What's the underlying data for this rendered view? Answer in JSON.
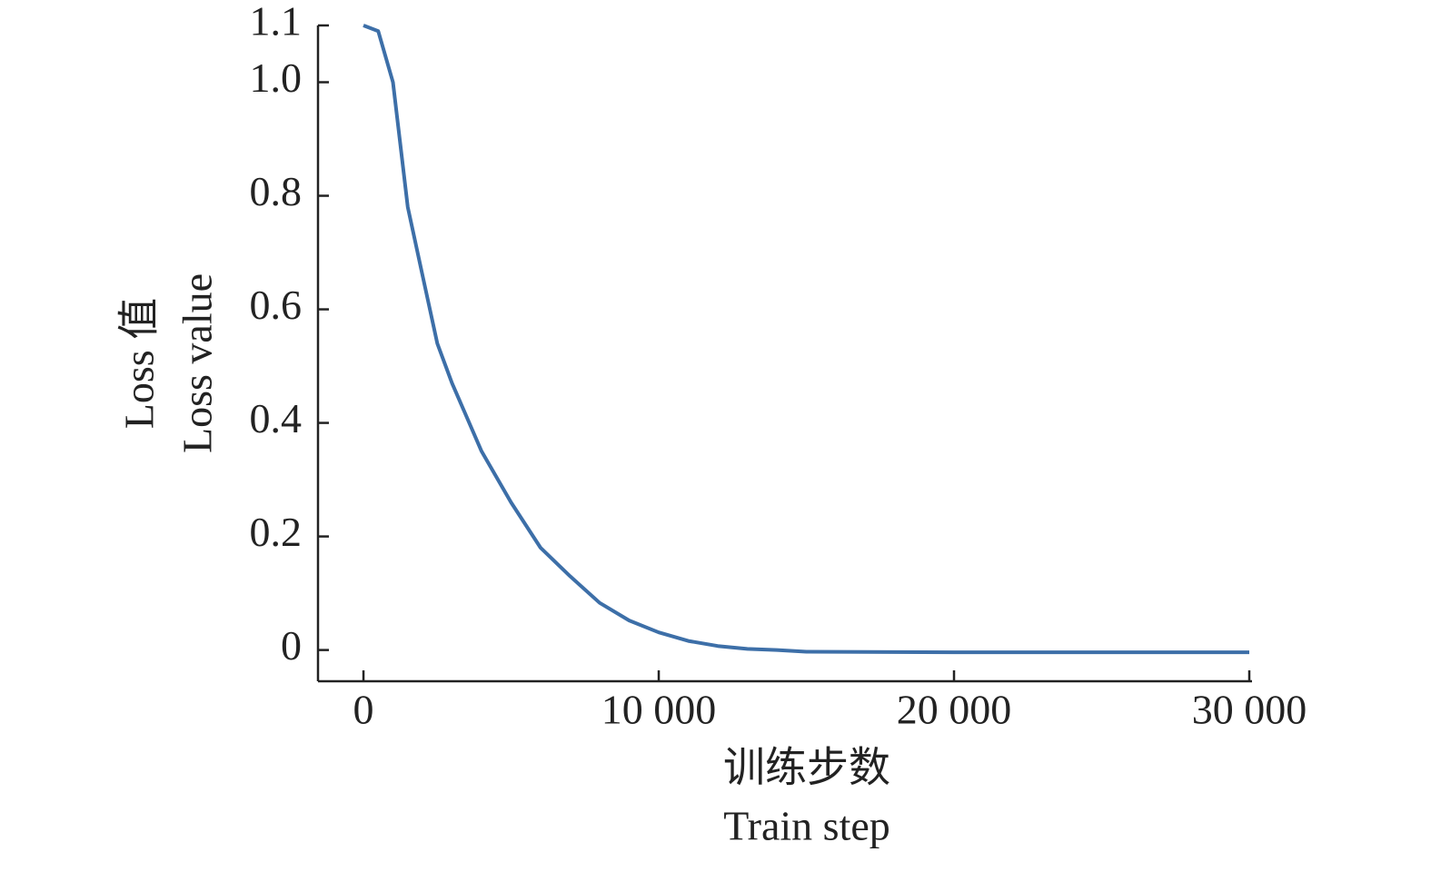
{
  "chart_data": {
    "type": "line",
    "x_label": [
      "训练步数",
      "Train step"
    ],
    "y_label": [
      "Loss 值",
      "Loss value"
    ],
    "series": [
      {
        "name": "Loss",
        "color": "#3d6fa8",
        "x": [
          0,
          500,
          1000,
          1500,
          2000,
          2500,
          3000,
          4000,
          5000,
          6000,
          7000,
          8000,
          9000,
          10000,
          11000,
          12000,
          13000,
          14000,
          15000,
          20000,
          25000,
          30000
        ],
        "values": [
          1.1,
          1.09,
          1.0,
          0.78,
          0.66,
          0.54,
          0.47,
          0.35,
          0.26,
          0.18,
          0.13,
          0.083,
          0.052,
          0.031,
          0.016,
          0.007,
          0.002,
          0,
          -0.003,
          -0.004,
          -0.004,
          -0.004
        ]
      }
    ],
    "xlim": [
      -1540,
      30000
    ],
    "ylim": [
      -0.055,
      1.1
    ],
    "xticks": [
      0,
      {
        "value": 10000,
        "label": "10 000"
      },
      {
        "value": 20000,
        "label": "20 000"
      },
      {
        "value": 30000,
        "label": "30 000"
      }
    ],
    "yticks": [
      0,
      0.2,
      0.4,
      0.6,
      0.8,
      {
        "value": 1,
        "label": "1.0"
      },
      1.1
    ]
  }
}
